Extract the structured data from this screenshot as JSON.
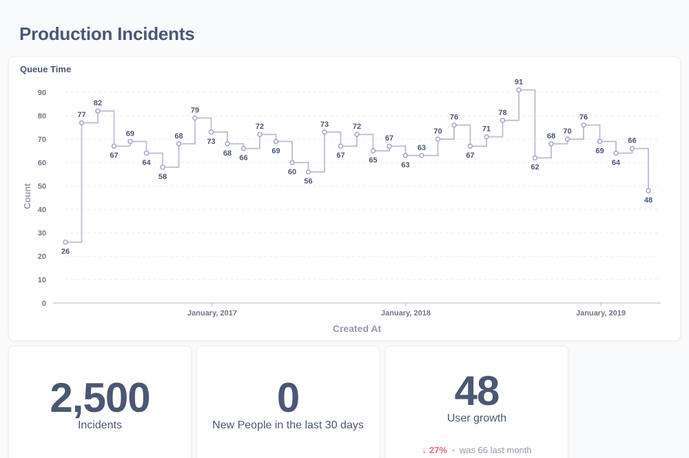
{
  "page": {
    "title": "Production Incidents"
  },
  "chart_card": {
    "title": "Queue Time"
  },
  "chart_data": {
    "type": "line",
    "step": true,
    "title": "Queue Time",
    "xlabel": "Created At",
    "ylabel": "Count",
    "ylim": [
      0,
      90
    ],
    "yticks": [
      0,
      10,
      20,
      30,
      40,
      50,
      60,
      70,
      80,
      90
    ],
    "xticks": [
      "January, 2017",
      "January, 2018",
      "January, 2019"
    ],
    "grid": true,
    "series": [
      {
        "values": [
          26,
          77,
          82,
          67,
          69,
          64,
          58,
          68,
          79,
          73,
          68,
          66,
          72,
          69,
          60,
          56,
          73,
          67,
          72,
          65,
          67,
          63,
          63,
          70,
          76,
          67,
          71,
          78,
          91,
          62,
          68,
          70,
          76,
          69,
          64,
          66,
          48
        ]
      }
    ],
    "color": "#c4c0d8"
  },
  "scalars": [
    {
      "value": "2,500",
      "label": "Incidents"
    },
    {
      "value": "0",
      "label": "New People in the last 30 days"
    },
    {
      "value": "48",
      "label": "User growth",
      "trend": {
        "direction": "down",
        "arrow": "↓",
        "percent": "27%",
        "separator": "•",
        "was_text": "was 66",
        "period": "last month",
        "color": "#ed6e6e"
      }
    }
  ]
}
